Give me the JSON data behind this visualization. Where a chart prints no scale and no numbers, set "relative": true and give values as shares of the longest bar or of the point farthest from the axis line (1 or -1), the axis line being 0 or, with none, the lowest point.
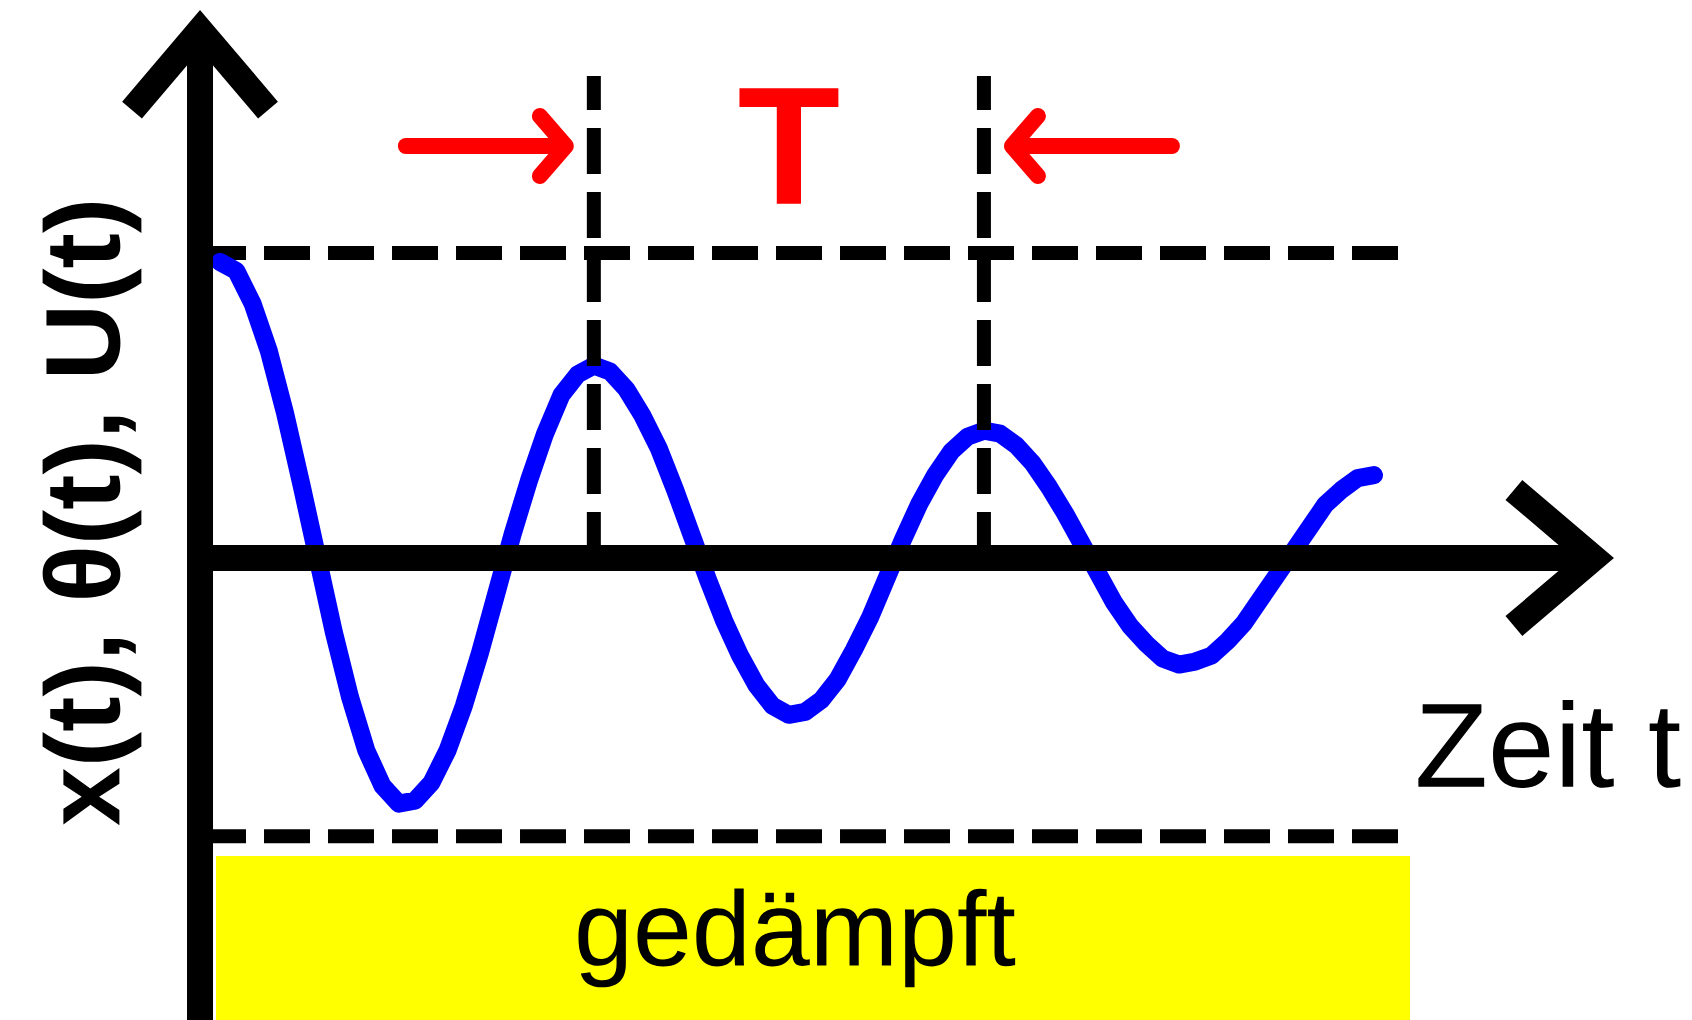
{
  "chart_data": {
    "type": "line",
    "xlabel": "Zeit t",
    "ylabel": "x(t), θ(t), U(t)",
    "relative": true,
    "tick_labels": false,
    "categories": [
      null,
      null,
      null,
      null,
      null,
      null,
      null,
      null,
      null,
      null,
      null,
      null,
      null,
      null,
      null,
      null,
      null,
      null,
      null,
      null,
      null,
      null,
      null,
      null,
      null,
      null,
      null,
      null,
      null,
      null,
      null,
      null,
      null,
      null,
      null,
      null,
      null,
      null,
      null,
      null,
      null,
      null,
      null,
      null,
      null,
      null,
      null,
      null,
      null,
      null,
      null,
      null,
      null,
      null,
      null,
      null,
      null,
      null,
      null,
      null,
      null,
      null,
      null,
      null,
      null,
      null,
      null,
      null,
      null,
      null,
      null,
      null
    ],
    "series": [
      {
        "color": "#0000ff",
        "values": [
          1.0,
          0.97,
          0.86,
          0.7,
          0.49,
          0.25,
          0.0,
          -0.25,
          -0.47,
          -0.65,
          -0.77,
          -0.83,
          -0.82,
          -0.76,
          -0.65,
          -0.5,
          -0.32,
          -0.12,
          0.08,
          0.26,
          0.42,
          0.55,
          0.62,
          0.65,
          0.63,
          0.57,
          0.48,
          0.37,
          0.23,
          0.08,
          -0.07,
          -0.21,
          -0.33,
          -0.43,
          -0.5,
          -0.53,
          -0.52,
          -0.48,
          -0.41,
          -0.31,
          -0.2,
          -0.07,
          0.06,
          0.18,
          0.28,
          0.36,
          0.41,
          0.43,
          0.42,
          0.38,
          0.32,
          0.24,
          0.15,
          0.05,
          -0.05,
          -0.15,
          -0.23,
          -0.29,
          -0.34,
          -0.36,
          -0.35,
          -0.33,
          -0.28,
          -0.22,
          -0.14,
          -0.06,
          0.02,
          0.1,
          0.18,
          0.23,
          0.27,
          0.28
        ]
      }
    ],
    "ref_lines": [
      {
        "axis": "y",
        "value": 1.03,
        "color": "#000000",
        "line_style": "dashed"
      },
      {
        "axis": "y",
        "value": -0.94,
        "color": "#000000",
        "line_style": "dashed"
      }
    ],
    "annotations": [
      "T",
      "gedämpft"
    ]
  }
}
